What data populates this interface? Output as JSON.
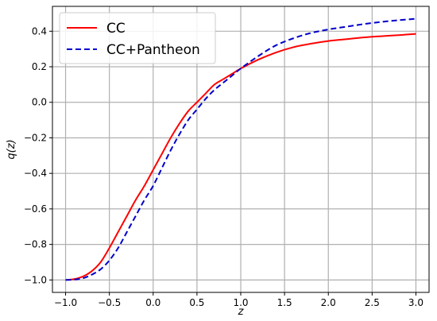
{
  "chart_data": {
    "type": "line",
    "xlabel": "z",
    "ylabel": "q(z)",
    "xlim": [
      -1.15,
      3.15
    ],
    "ylim": [
      -1.07,
      0.54
    ],
    "xticks": [
      -1.0,
      -0.5,
      0.0,
      0.5,
      1.0,
      1.5,
      2.0,
      2.5,
      3.0
    ],
    "xtick_labels": [
      "−1.0",
      "−0.5",
      "0.0",
      "0.5",
      "1.0",
      "1.5",
      "2.0",
      "2.5",
      "3.0"
    ],
    "yticks": [
      -1.0,
      -0.8,
      -0.6,
      -0.4,
      -0.2,
      0.0,
      0.2,
      0.4
    ],
    "ytick_labels": [
      "−1.0",
      "−0.8",
      "−0.6",
      "−0.4",
      "−0.2",
      "0.0",
      "0.2",
      "0.4"
    ],
    "grid": true,
    "legend_position": "top-left",
    "series": [
      {
        "name": "CC",
        "color": "#ff0000",
        "dash": "solid",
        "x": [
          -1.0,
          -0.9,
          -0.8,
          -0.7,
          -0.6,
          -0.5,
          -0.4,
          -0.3,
          -0.2,
          -0.1,
          0.0,
          0.1,
          0.2,
          0.3,
          0.4,
          0.5,
          0.6,
          0.7,
          0.8,
          0.9,
          1.0,
          1.2,
          1.4,
          1.6,
          1.8,
          2.0,
          2.2,
          2.4,
          2.6,
          2.8,
          3.0
        ],
        "y": [
          -1.0,
          -0.995,
          -0.98,
          -0.95,
          -0.9,
          -0.82,
          -0.73,
          -0.64,
          -0.55,
          -0.47,
          -0.38,
          -0.29,
          -0.2,
          -0.12,
          -0.05,
          0.0,
          0.05,
          0.1,
          0.13,
          0.16,
          0.19,
          0.24,
          0.28,
          0.31,
          0.33,
          0.345,
          0.355,
          0.365,
          0.372,
          0.378,
          0.385
        ]
      },
      {
        "name": "CC+Pantheon",
        "color": "#0000cc",
        "dash": "dashed",
        "x": [
          -1.0,
          -0.9,
          -0.8,
          -0.7,
          -0.6,
          -0.5,
          -0.4,
          -0.3,
          -0.2,
          -0.1,
          0.0,
          0.1,
          0.2,
          0.3,
          0.4,
          0.5,
          0.6,
          0.7,
          0.8,
          0.9,
          1.0,
          1.2,
          1.4,
          1.6,
          1.8,
          2.0,
          2.2,
          2.4,
          2.6,
          2.8,
          3.0
        ],
        "y": [
          -1.0,
          -0.998,
          -0.99,
          -0.97,
          -0.94,
          -0.89,
          -0.82,
          -0.73,
          -0.64,
          -0.55,
          -0.47,
          -0.37,
          -0.27,
          -0.18,
          -0.1,
          -0.04,
          0.02,
          0.07,
          0.11,
          0.15,
          0.19,
          0.26,
          0.32,
          0.36,
          0.39,
          0.41,
          0.425,
          0.44,
          0.452,
          0.462,
          0.47
        ]
      }
    ]
  }
}
